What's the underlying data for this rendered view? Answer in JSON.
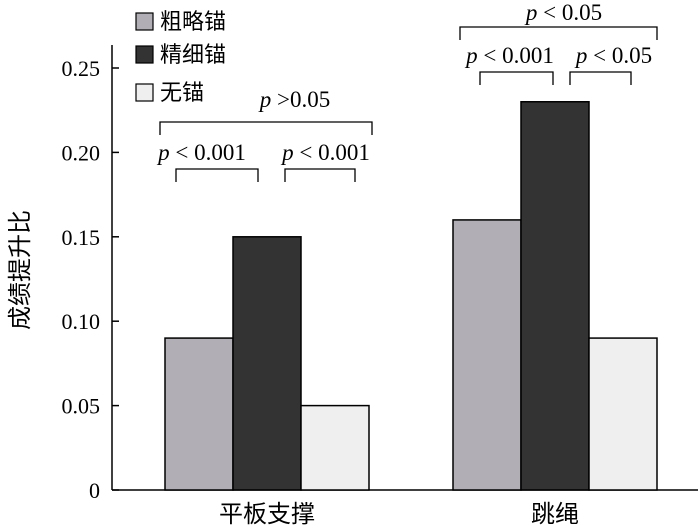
{
  "chart_data": {
    "type": "bar",
    "title": "",
    "xlabel": "",
    "ylabel": "成绩提升比",
    "ylim": [
      0,
      0.25
    ],
    "yticks": [
      "0",
      "0.05",
      "0.10",
      "0.15",
      "0.20",
      "0.25"
    ],
    "ytick_values": [
      0,
      0.05,
      0.1,
      0.15,
      0.2,
      0.25
    ],
    "categories": [
      "平板支撑",
      "跳绳"
    ],
    "series": [
      {
        "name": "粗略锚",
        "color": "#b1afb5",
        "values": [
          0.09,
          0.16
        ]
      },
      {
        "name": "精细锚",
        "color": "#333333",
        "values": [
          0.15,
          0.23
        ]
      },
      {
        "name": "无锚",
        "color": "#efefef",
        "values": [
          0.05,
          0.09
        ]
      }
    ],
    "legend_position": "top-left",
    "grid": false,
    "annotations": [
      {
        "category": 0,
        "from": 0,
        "to": 1,
        "level": 1,
        "label_prefix": "p",
        "label_rest": " < 0.001"
      },
      {
        "category": 0,
        "from": 1,
        "to": 2,
        "level": 1,
        "label_prefix": "p",
        "label_rest": " < 0.001"
      },
      {
        "category": 0,
        "from": 0,
        "to": 2,
        "level": 2,
        "label_prefix": "p",
        "label_rest": " >0.05"
      },
      {
        "category": 1,
        "from": 0,
        "to": 1,
        "level": 1,
        "label_prefix": "p",
        "label_rest": " < 0.001"
      },
      {
        "category": 1,
        "from": 1,
        "to": 2,
        "level": 1,
        "label_prefix": "p",
        "label_rest": " < 0.05"
      },
      {
        "category": 1,
        "from": 0,
        "to": 2,
        "level": 2,
        "label_prefix": "p",
        "label_rest": " < 0.05"
      }
    ]
  }
}
